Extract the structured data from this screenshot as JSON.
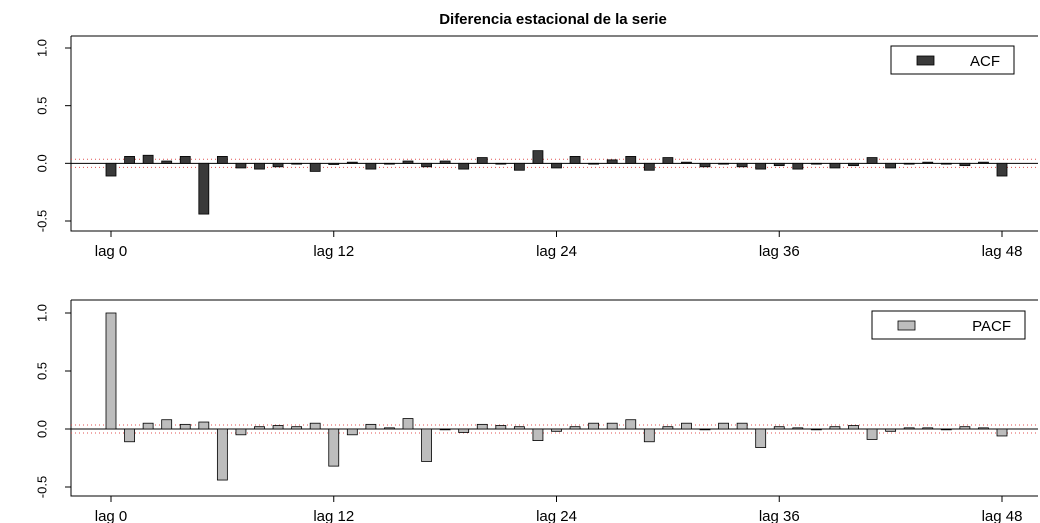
{
  "title": "Diferencia estacional de la serie",
  "colors": {
    "acf_bar": "#3a3a3a",
    "pacf_bar": "#bdbdbd",
    "bar_stroke": "#000000",
    "zero_line": "#000000",
    "conf_band": "#e05050",
    "axis": "#000000",
    "text": "#000000"
  },
  "chart_data": [
    {
      "type": "bar",
      "legend_label": "ACF",
      "legend_position": "top-right",
      "x_tick_labels": [
        "lag 0",
        "lag 12",
        "lag 24",
        "lag 36",
        "lag 48"
      ],
      "x_tick_lags": [
        0,
        12,
        24,
        36,
        48
      ],
      "y_tick_labels": [
        "-0.5",
        "0.0",
        "0.5",
        "1.0"
      ],
      "ylim": [
        -0.5,
        1.0
      ],
      "conf_limit": 0.035,
      "lags": [
        0,
        1,
        2,
        3,
        4,
        5,
        6,
        7,
        8,
        9,
        10,
        11,
        12,
        13,
        14,
        15,
        16,
        17,
        18,
        19,
        20,
        21,
        22,
        23,
        24,
        25,
        26,
        27,
        28,
        29,
        30,
        31,
        32,
        33,
        34,
        35,
        36,
        37,
        38,
        39,
        40,
        41,
        42,
        43,
        44,
        45,
        46,
        47,
        48
      ],
      "values": [
        -0.11,
        0.06,
        0.07,
        0.02,
        0.06,
        -0.44,
        0.06,
        -0.04,
        -0.05,
        -0.03,
        0,
        -0.07,
        -0.01,
        0.01,
        -0.05,
        0,
        0.02,
        -0.03,
        0.02,
        -0.05,
        0.05,
        0,
        -0.06,
        0.11,
        -0.04,
        0.06,
        0,
        0.03,
        0.06,
        -0.06,
        0.05,
        0.01,
        -0.03,
        0,
        -0.03,
        -0.05,
        -0.02,
        -0.05,
        0,
        -0.04,
        -0.02,
        0.05,
        -0.04,
        0,
        0.01,
        0,
        -0.02,
        0.01,
        -0.11
      ]
    },
    {
      "type": "bar",
      "legend_label": "PACF",
      "legend_position": "top-right",
      "x_tick_labels": [
        "lag 0",
        "lag 12",
        "lag 24",
        "lag 36",
        "lag 48"
      ],
      "x_tick_lags": [
        0,
        12,
        24,
        36,
        48
      ],
      "y_tick_labels": [
        "-0.5",
        "0.0",
        "0.5",
        "1.0"
      ],
      "ylim": [
        -0.5,
        1.0
      ],
      "conf_limit": 0.035,
      "lags": [
        0,
        1,
        2,
        3,
        4,
        5,
        6,
        7,
        8,
        9,
        10,
        11,
        12,
        13,
        14,
        15,
        16,
        17,
        18,
        19,
        20,
        21,
        22,
        23,
        24,
        25,
        26,
        27,
        28,
        29,
        30,
        31,
        32,
        33,
        34,
        35,
        36,
        37,
        38,
        39,
        40,
        41,
        42,
        43,
        44,
        45,
        46,
        47,
        48
      ],
      "values": [
        1.0,
        -0.11,
        0.05,
        0.08,
        0.04,
        0.06,
        -0.44,
        -0.05,
        0.02,
        0.03,
        0.02,
        0.05,
        -0.32,
        -0.05,
        0.04,
        0.01,
        0.09,
        -0.28,
        0,
        -0.03,
        0.04,
        0.03,
        0.02,
        -0.1,
        -0.02,
        0.02,
        0.05,
        0.05,
        0.08,
        -0.11,
        0.02,
        0.05,
        0,
        0.05,
        0.05,
        -0.16,
        0.02,
        0.01,
        0,
        0.02,
        0.03,
        -0.09,
        -0.02,
        0.01,
        0.01,
        0,
        0.02,
        0.01,
        -0.06
      ]
    }
  ]
}
